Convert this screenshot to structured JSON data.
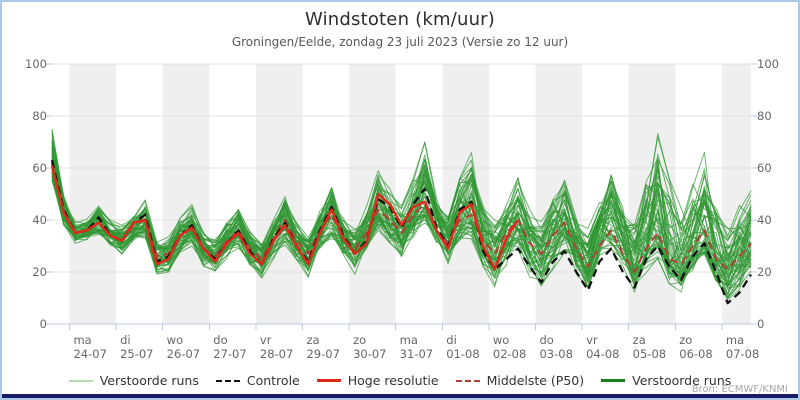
{
  "header": {
    "title": "Windstoten (km/uur)",
    "subtitle": "Groningen/Eelde, zondag 23 juli 2023 (Versie zo 12 uur)"
  },
  "source": "Bron: ECMWF/KNMI",
  "colors": {
    "frame_border": "#a9c7e7",
    "bottom_bar": "#1a1b66",
    "band_shaded": "#efefef",
    "gridline": "#e2e2e2",
    "axis_line": "#b9c8dc",
    "tick_label": "#666666",
    "ensemble_green": "#2f9632",
    "control_black": "#111111",
    "hres_red": "#dd2a1c",
    "p50_dark_red": "#b04038",
    "legend_pale_green": "#b7dcb2",
    "legend_dark_green": "#1b7f1b"
  },
  "legend": [
    {
      "label": "Verstoorde runs",
      "swatch": "pale-green-line"
    },
    {
      "label": "Controle",
      "swatch": "black-dashed"
    },
    {
      "label": "Hoge resolutie",
      "swatch": "red-solid"
    },
    {
      "label": "Middelste (P50)",
      "swatch": "dark-red-dashed"
    },
    {
      "label": "Verstoorde runs",
      "swatch": "dark-green-line"
    }
  ],
  "chart_data": {
    "type": "line",
    "title": "Windstoten (km/uur)",
    "subtitle": "Groningen/Eelde, zondag 23 juli 2023 (Versie zo 12 uur)",
    "ylabel": "",
    "ylim": [
      0,
      100
    ],
    "yticks": [
      0,
      20,
      40,
      60,
      80,
      100
    ],
    "grid": true,
    "legend_position": "bottom",
    "step_hours": 6,
    "total_hours": 360,
    "first_midnight_offset_hours": 9,
    "x_axis_days": [
      {
        "abbr": "ma",
        "date": "24-07",
        "shaded": true
      },
      {
        "abbr": "di",
        "date": "25-07",
        "shaded": false
      },
      {
        "abbr": "wo",
        "date": "26-07",
        "shaded": true
      },
      {
        "abbr": "do",
        "date": "27-07",
        "shaded": false
      },
      {
        "abbr": "vr",
        "date": "28-07",
        "shaded": true
      },
      {
        "abbr": "za",
        "date": "29-07",
        "shaded": false
      },
      {
        "abbr": "zo",
        "date": "30-07",
        "shaded": true
      },
      {
        "abbr": "ma",
        "date": "31-07",
        "shaded": false
      },
      {
        "abbr": "di",
        "date": "01-08",
        "shaded": true
      },
      {
        "abbr": "wo",
        "date": "02-08",
        "shaded": false
      },
      {
        "abbr": "do",
        "date": "03-08",
        "shaded": true
      },
      {
        "abbr": "vr",
        "date": "04-08",
        "shaded": false
      },
      {
        "abbr": "za",
        "date": "05-08",
        "shaded": true
      },
      {
        "abbr": "zo",
        "date": "06-08",
        "shaded": false
      },
      {
        "abbr": "ma",
        "date": "07-08",
        "shaded": true
      }
    ],
    "series": [
      {
        "name": "Controle",
        "style": "dashed",
        "color": "#111111",
        "width": 2.3,
        "values": [
          63,
          44,
          35,
          36,
          41,
          34,
          32,
          39,
          42,
          24,
          26,
          34,
          38,
          29,
          25,
          31,
          36,
          28,
          23,
          33,
          39,
          30,
          24,
          36,
          45,
          34,
          27,
          32,
          48,
          45,
          37,
          46,
          52,
          37,
          30,
          44,
          47,
          28,
          21,
          25,
          29,
          22,
          16,
          24,
          28,
          20,
          13,
          24,
          29,
          20,
          14,
          25,
          30,
          22,
          17,
          26,
          31,
          20,
          8,
          12,
          19
        ]
      },
      {
        "name": "Hoge resolutie",
        "style": "solid",
        "color": "#dd2a1c",
        "width": 2.5,
        "values": [
          61,
          43,
          35,
          36,
          39,
          34,
          32,
          39,
          40,
          23,
          25,
          34,
          37,
          29,
          24,
          31,
          35,
          27,
          23,
          32,
          38,
          30,
          23,
          35,
          44,
          33,
          27,
          31,
          50,
          46,
          38,
          45,
          47,
          36,
          29,
          43,
          46,
          30,
          21,
          33,
          40
        ]
      },
      {
        "name": "Middelste (P50)",
        "style": "dashed",
        "color": "#b04038",
        "width": 2.0,
        "values": [
          62,
          43,
          35,
          36,
          39,
          34,
          32,
          38,
          40,
          26,
          27,
          34,
          37,
          29,
          26,
          32,
          36,
          29,
          25,
          33,
          40,
          32,
          27,
          36,
          42,
          33,
          29,
          35,
          44,
          40,
          35,
          42,
          46,
          36,
          31,
          40,
          42,
          32,
          27,
          35,
          40,
          31,
          27,
          34,
          39,
          29,
          22,
          30,
          36,
          27,
          20,
          29,
          35,
          25,
          23,
          30,
          36,
          25,
          21,
          26,
          31
        ]
      }
    ],
    "ensemble": {
      "name": "Verstoorde runs",
      "member_count": 50,
      "seed": 42,
      "color": "#2f9632",
      "opacity": 0.7,
      "width": 1,
      "envelope_min": [
        55,
        38,
        31,
        32,
        33,
        29,
        26,
        31,
        33,
        19,
        20,
        27,
        30,
        22,
        19,
        25,
        28,
        21,
        17,
        25,
        30,
        23,
        18,
        27,
        32,
        24,
        19,
        26,
        33,
        28,
        24,
        31,
        35,
        25,
        19,
        28,
        31,
        20,
        14,
        22,
        26,
        18,
        13,
        21,
        26,
        17,
        11,
        19,
        24,
        16,
        10,
        18,
        24,
        15,
        12,
        19,
        24,
        14,
        7,
        12,
        17
      ],
      "envelope_max": [
        75,
        50,
        40,
        41,
        46,
        40,
        38,
        45,
        50,
        33,
        34,
        41,
        46,
        36,
        33,
        39,
        46,
        36,
        32,
        41,
        50,
        40,
        35,
        45,
        55,
        43,
        38,
        46,
        60,
        52,
        46,
        58,
        70,
        50,
        42,
        56,
        66,
        46,
        40,
        48,
        58,
        44,
        40,
        50,
        58,
        44,
        38,
        50,
        62,
        48,
        42,
        60,
        80,
        56,
        45,
        56,
        66,
        50,
        40,
        48,
        58
      ]
    }
  }
}
